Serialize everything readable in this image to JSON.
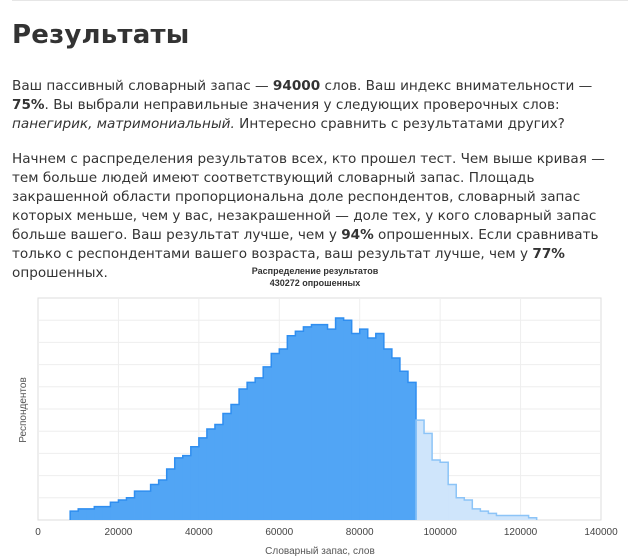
{
  "page": {
    "title": "Результаты",
    "p1": {
      "t1": "Ваш пассивный словарный запас — ",
      "vocab": "94000",
      "t2": " слов. Ваш индекс внимательности — ",
      "attention": "75%",
      "t3": ". Вы выбрали неправильные значения у следующих проверочных слов: ",
      "words": "панегирик, матримониальный.",
      "t4": " Интересно сравнить с результатами других?"
    },
    "p2": {
      "t1": "Начнем с распределения результатов всех, кто прошел тест. Чем выше кривая — тем больше людей имеют соответствующий словарный запас. Площадь закрашенной области пропорциональна доле респондентов, словарный запас которых меньше, чем у вас, незакрашенной — доле тех, у кого словарный запас больше вашего. Ваш результат лучше, чем у ",
      "pct_all": "94%",
      "t2": " опрошенных. Если сравнивать только с респондентами вашего возраста, ваш результат лучше, чем у ",
      "pct_age": "77%",
      "t3": " опрошенных."
    }
  },
  "chart_data": {
    "type": "area",
    "title": "Распределение результатов",
    "subtitle": "430272 опрошенных",
    "xlabel": "Словарный запас, слов",
    "ylabel": "Респондентов",
    "xlim": [
      0,
      140000
    ],
    "ylim": [
      0,
      1.0
    ],
    "x_ticks": [
      "0",
      "20000",
      "40000",
      "60000",
      "80000",
      "100000",
      "120000",
      "140000"
    ],
    "grid": true,
    "step": 2000,
    "user_value": 94000,
    "colors": {
      "filled": "#2f8ef0",
      "filled_fill": "#51a5f5",
      "unfilled": "#8cc4f7",
      "unfilled_fill": "#cfe5fb"
    },
    "x": [
      8000,
      10000,
      12000,
      14000,
      16000,
      18000,
      20000,
      22000,
      24000,
      26000,
      28000,
      30000,
      32000,
      34000,
      36000,
      38000,
      40000,
      42000,
      44000,
      46000,
      48000,
      50000,
      52000,
      54000,
      56000,
      58000,
      60000,
      62000,
      64000,
      66000,
      68000,
      70000,
      72000,
      74000,
      76000,
      78000,
      80000,
      82000,
      84000,
      86000,
      88000,
      90000,
      92000,
      94000,
      96000,
      98000,
      100000,
      102000,
      104000,
      106000,
      108000,
      110000,
      112000,
      114000,
      116000,
      118000,
      120000,
      122000
    ],
    "values": [
      0.04,
      0.05,
      0.05,
      0.06,
      0.06,
      0.08,
      0.09,
      0.1,
      0.13,
      0.13,
      0.16,
      0.18,
      0.23,
      0.28,
      0.29,
      0.33,
      0.37,
      0.41,
      0.43,
      0.48,
      0.52,
      0.59,
      0.62,
      0.64,
      0.69,
      0.75,
      0.77,
      0.83,
      0.85,
      0.87,
      0.88,
      0.88,
      0.86,
      0.91,
      0.9,
      0.84,
      0.86,
      0.82,
      0.84,
      0.77,
      0.73,
      0.67,
      0.62,
      0.45,
      0.39,
      0.27,
      0.26,
      0.16,
      0.1,
      0.09,
      0.05,
      0.04,
      0.03,
      0.02,
      0.02,
      0.02,
      0.02,
      0.01
    ]
  }
}
